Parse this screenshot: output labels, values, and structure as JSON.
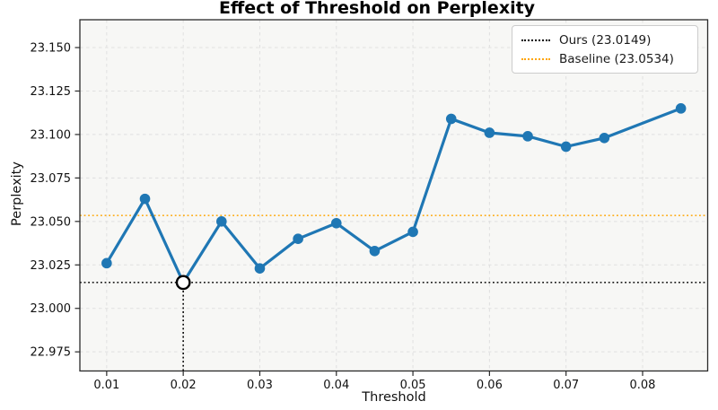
{
  "chart_data": {
    "type": "line",
    "title": "Effect of Threshold on Perplexity",
    "xlabel": "Threshold",
    "ylabel": "Perplexity",
    "x": [
      0.01,
      0.015,
      0.02,
      0.025,
      0.03,
      0.035,
      0.04,
      0.045,
      0.05,
      0.055,
      0.06,
      0.065,
      0.07,
      0.075,
      0.085
    ],
    "y": [
      23.026,
      23.063,
      23.0149,
      23.05,
      23.023,
      23.04,
      23.049,
      23.033,
      23.044,
      23.109,
      23.101,
      23.099,
      23.093,
      23.098,
      23.115
    ],
    "line_color": "#1f77b4",
    "marker": "circle",
    "highlight_point": {
      "x": 0.02,
      "y": 23.0149,
      "marker": "open-circle",
      "edge_color": "#000000",
      "fill_color": "#ffffff",
      "dropline": true
    },
    "reference_lines": [
      {
        "label": "Ours (23.0149)",
        "value": 23.0149,
        "color": "#000000",
        "linestyle": "dotted"
      },
      {
        "label": "Baseline (23.0534)",
        "value": 23.0534,
        "color": "#ffa500",
        "linestyle": "dotted"
      }
    ],
    "legend_position": "upper-right",
    "xticks": [
      0.01,
      0.02,
      0.03,
      0.04,
      0.05,
      0.06,
      0.07,
      0.08
    ],
    "xtick_labels": [
      "0.01",
      "0.02",
      "0.03",
      "0.04",
      "0.05",
      "0.06",
      "0.07",
      "0.08"
    ],
    "yticks": [
      22.975,
      23.0,
      23.025,
      23.05,
      23.075,
      23.1,
      23.125,
      23.15
    ],
    "ytick_labels": [
      "22.975",
      "23.000",
      "23.025",
      "23.050",
      "23.075",
      "23.100",
      "23.125",
      "23.150"
    ],
    "xlim": [
      0.0065,
      0.0885
    ],
    "ylim": [
      22.964,
      23.166
    ],
    "grid": true,
    "grid_style": "dashed",
    "background": "#f7f7f5",
    "grid_color": "#e0e0e0",
    "spine_color": "#2a2a2a"
  }
}
